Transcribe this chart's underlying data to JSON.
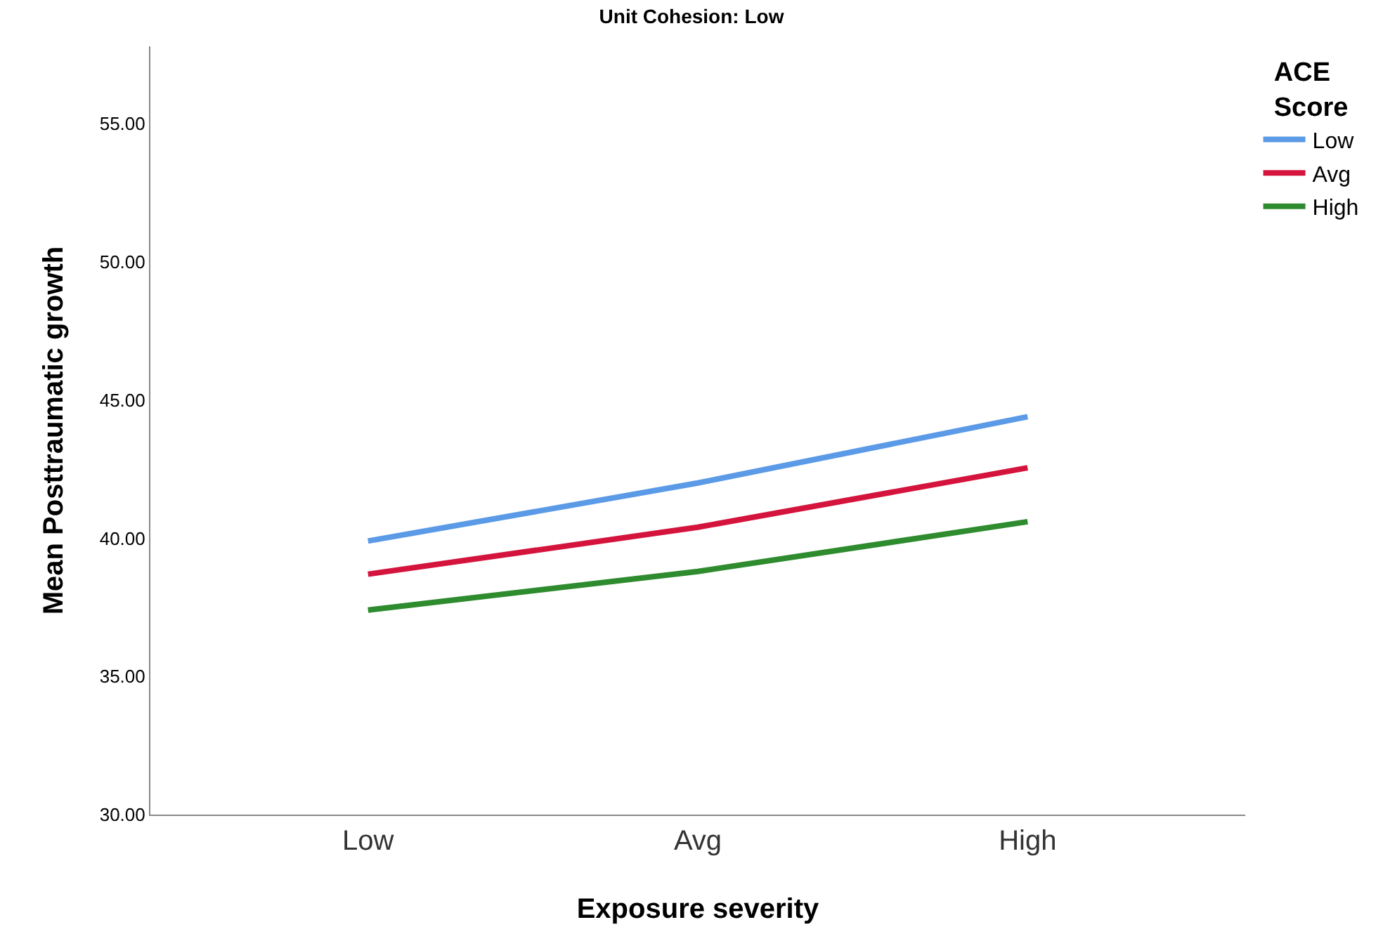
{
  "chart_data": {
    "type": "line",
    "title": "Unit Cohesion: Low",
    "xlabel": "Exposure severity",
    "ylabel": "Mean Posttraumatic growth",
    "legend_title": "ACE Score",
    "categories": [
      "Low",
      "Avg",
      "High"
    ],
    "series": [
      {
        "name": "Low",
        "color": "#5b9ae6",
        "values": [
          39.9,
          42.0,
          44.4
        ]
      },
      {
        "name": "Avg",
        "color": "#d4143c",
        "values": [
          38.7,
          40.4,
          42.55
        ]
      },
      {
        "name": "High",
        "color": "#2e8b2e",
        "values": [
          37.4,
          38.8,
          40.6
        ]
      }
    ],
    "ylim": [
      30,
      57.8
    ],
    "yticks": [
      {
        "value": 30,
        "label": "30.00"
      },
      {
        "value": 35,
        "label": "35.00"
      },
      {
        "value": 40,
        "label": "40.00"
      },
      {
        "value": 45,
        "label": "45.00"
      },
      {
        "value": 50,
        "label": "50.00"
      },
      {
        "value": 55,
        "label": "55.00"
      }
    ],
    "legend": "top right",
    "marker": "none",
    "line_style": "solid"
  }
}
